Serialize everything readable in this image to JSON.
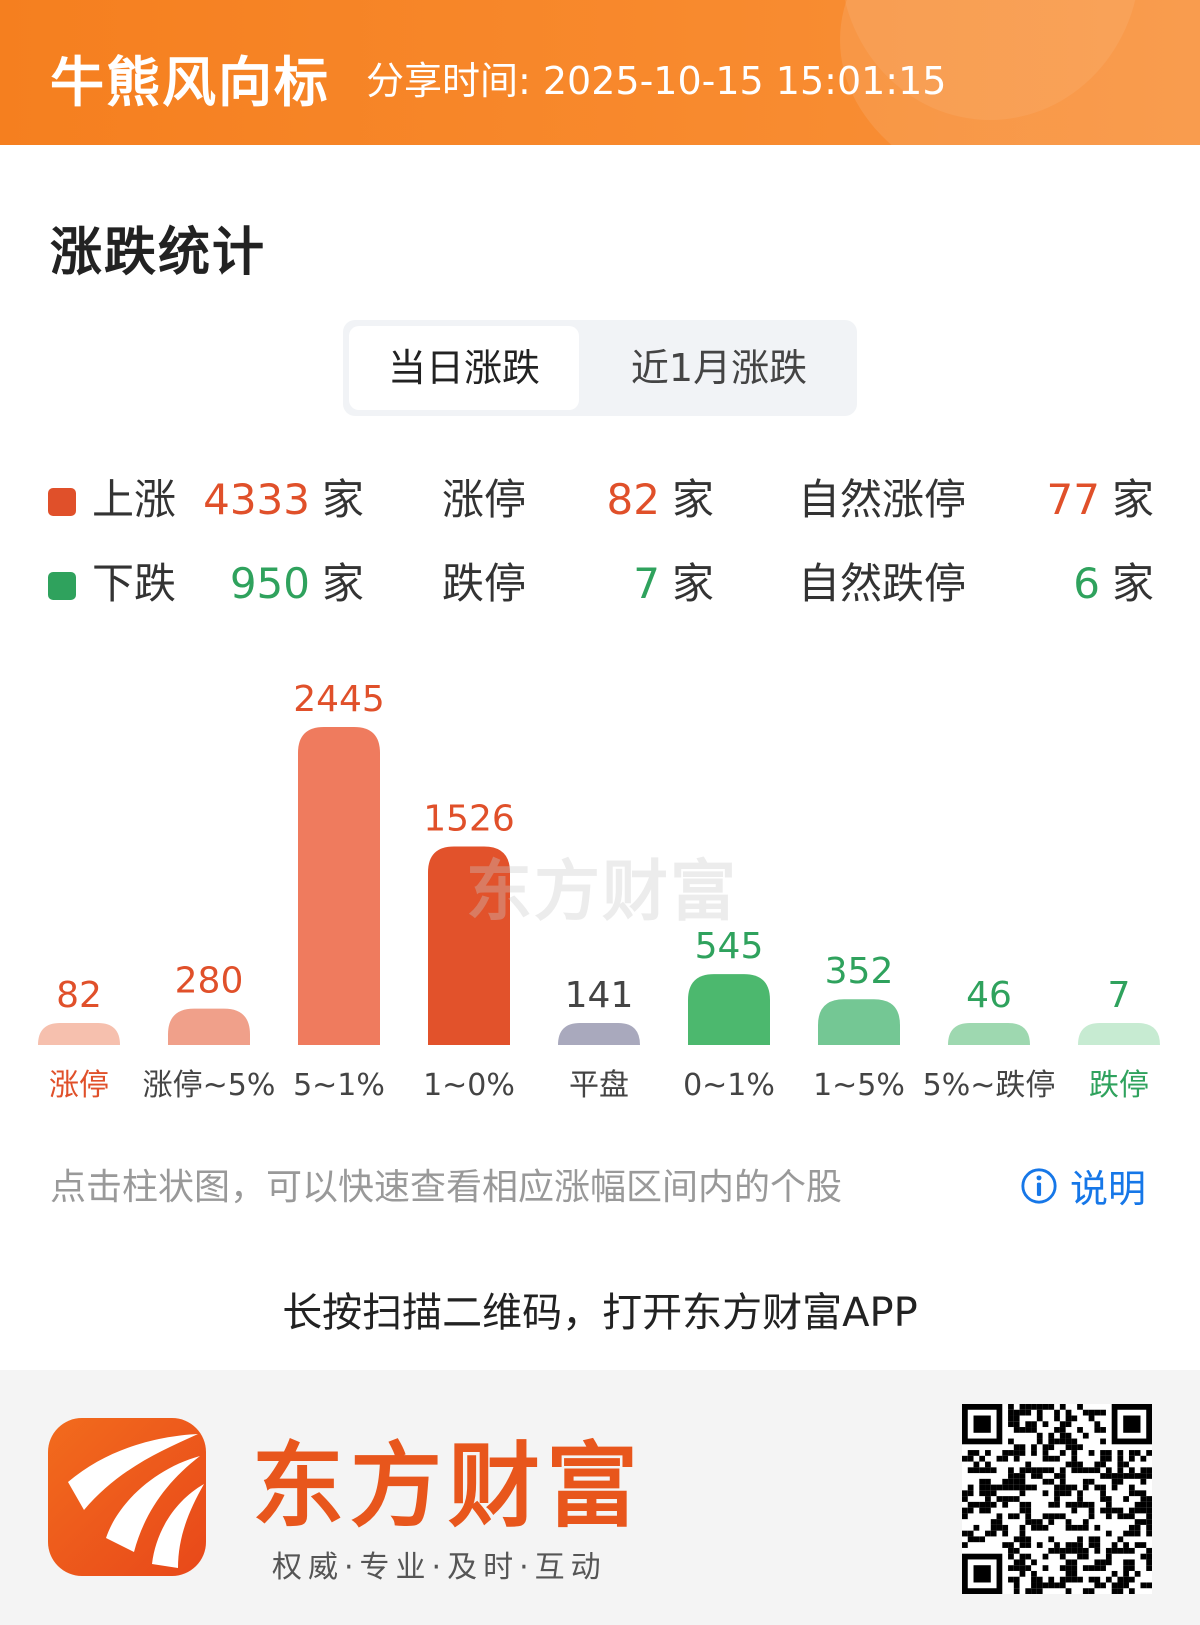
{
  "header": {
    "app_title": "牛熊风向标",
    "share_time": "分享时间: 2025-10-15 15:01:15"
  },
  "section_title": "涨跌统计",
  "tabs": [
    {
      "label": "当日涨跌",
      "active": true
    },
    {
      "label": "近1月涨跌",
      "active": false
    }
  ],
  "stats": {
    "up": {
      "label": "上涨",
      "value": "4333",
      "unit": "家"
    },
    "limit_up": {
      "label": "涨停",
      "value": "82",
      "unit": "家"
    },
    "natural_limit_up": {
      "label": "自然涨停",
      "value": "77",
      "unit": "家"
    },
    "down": {
      "label": "下跌",
      "value": "950",
      "unit": "家"
    },
    "limit_down": {
      "label": "跌停",
      "value": "7",
      "unit": "家"
    },
    "natural_limit_down": {
      "label": "自然跌停",
      "value": "6",
      "unit": "家"
    }
  },
  "colors": {
    "up": "#e0502a",
    "down": "#2fa25d",
    "flat": "#a9a9bd",
    "accent": "#f57f1f",
    "link": "#1677e8"
  },
  "chart_data": {
    "type": "bar",
    "categories": [
      "涨停",
      "涨停~5%",
      "5~1%",
      "1~0%",
      "平盘",
      "0~1%",
      "1~5%",
      "5%~跌停",
      "跌停"
    ],
    "values": [
      82,
      280,
      2445,
      1526,
      141,
      545,
      352,
      46,
      7
    ],
    "bar_colors": [
      "#f6c0ae",
      "#f0a08a",
      "#ef7b5e",
      "#e2522b",
      "#a9a9bd",
      "#4cb86e",
      "#74c794",
      "#9ed8b0",
      "#c7ebd2"
    ],
    "value_colors": [
      "#e0502a",
      "#e0502a",
      "#e0502a",
      "#e0502a",
      "#444444",
      "#2fa25d",
      "#2fa25d",
      "#2fa25d",
      "#2fa25d"
    ],
    "label_colors": [
      "#e0502a",
      "#444444",
      "#444444",
      "#444444",
      "#444444",
      "#444444",
      "#444444",
      "#444444",
      "#2fa25d"
    ],
    "title": "",
    "xlabel": "",
    "ylabel": "",
    "ylim": [
      0,
      2445
    ],
    "grid": false,
    "legend": "none"
  },
  "watermark": "东方财富",
  "hint": "点击柱状图，可以快速查看相应涨幅区间内的个股",
  "explain_label": "说明",
  "scan_tip": "长按扫描二维码，打开东方财富APP",
  "footer": {
    "brand": "东方财富",
    "slogan": "权威·专业·及时·互动"
  }
}
